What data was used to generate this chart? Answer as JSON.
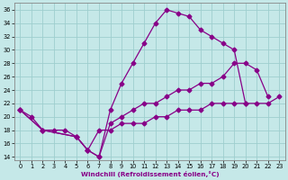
{
  "xlabel": "Windchill (Refroidissement éolien,°C)",
  "xlim": [
    -0.5,
    23.5
  ],
  "ylim": [
    13.5,
    37
  ],
  "xticks": [
    0,
    1,
    2,
    3,
    4,
    5,
    6,
    7,
    8,
    9,
    10,
    11,
    12,
    13,
    14,
    15,
    16,
    17,
    18,
    19,
    20,
    21,
    22,
    23
  ],
  "yticks": [
    14,
    16,
    18,
    20,
    22,
    24,
    26,
    28,
    30,
    32,
    34,
    36
  ],
  "bg_color": "#c5e8e8",
  "grid_color": "#9ecece",
  "line_color": "#880088",
  "curve1": {
    "x": [
      0,
      1,
      2,
      3,
      4,
      5,
      6,
      7,
      8,
      9,
      10,
      11,
      12,
      13,
      14,
      15,
      16,
      17,
      18,
      19,
      20
    ],
    "y": [
      21,
      20,
      18,
      18,
      18,
      17,
      15,
      14,
      21,
      25,
      28,
      31,
      34,
      36,
      35.5,
      35,
      33,
      32,
      31,
      30,
      22
    ]
  },
  "curve2": {
    "x": [
      0,
      2,
      5,
      6,
      7,
      8,
      9,
      10,
      11,
      12,
      13,
      14,
      15,
      16,
      17,
      18,
      19,
      20,
      21,
      22
    ],
    "y": [
      21,
      18,
      17,
      15,
      14,
      19,
      20,
      21,
      22,
      22,
      23,
      24,
      24,
      25,
      25,
      26,
      28,
      28,
      27,
      23
    ]
  },
  "curve3": {
    "x": [
      0,
      2,
      5,
      6,
      7,
      8,
      9,
      10,
      11,
      12,
      13,
      14,
      15,
      16,
      17,
      18,
      19,
      20,
      21,
      22,
      23
    ],
    "y": [
      21,
      18,
      17,
      15,
      18,
      18,
      19,
      19,
      19,
      20,
      20,
      21,
      21,
      21,
      22,
      22,
      22,
      22,
      22,
      22,
      23
    ]
  }
}
